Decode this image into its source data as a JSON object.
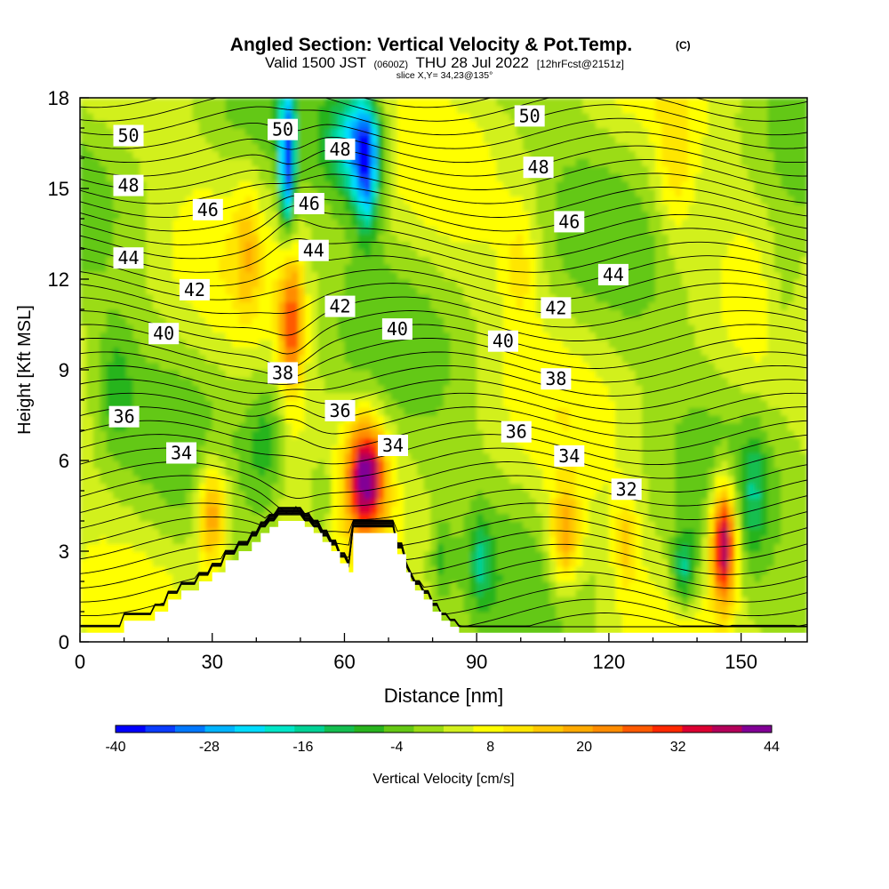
{
  "header": {
    "title": "Angled Section: Vertical Velocity & Pot.Temp.",
    "title_units": "(C)",
    "sub_valid": "Valid 1500 JST",
    "sub_utc": "(0600Z)",
    "sub_date": "THU 28 Jul 2022",
    "sub_fcst": "[12hrFcst@2151z]",
    "slice": "slice X,Y= 34,23@135°"
  },
  "chart_data": {
    "type": "heatmap",
    "xlabel": "Distance [nm]",
    "ylabel": "Height [Kft MSL]",
    "xlim": [
      0,
      165
    ],
    "ylim": [
      0,
      18
    ],
    "x_ticks": [
      "0",
      "30",
      "60",
      "90",
      "120",
      "150"
    ],
    "x_tick_values": [
      0,
      30,
      60,
      90,
      120,
      150
    ],
    "y_ticks": [
      "0",
      "3",
      "6",
      "9",
      "12",
      "15",
      "18"
    ],
    "y_tick_values": [
      0,
      3,
      6,
      9,
      12,
      15,
      18
    ],
    "colorbar": {
      "label": "Vertical Velocity [cm/s]",
      "tick_labels": [
        "-40",
        "-28",
        "-16",
        "-4",
        "8",
        "20",
        "32",
        "44"
      ],
      "tick_values": [
        -40,
        -28,
        -16,
        -4,
        8,
        20,
        32,
        44
      ],
      "levels": [
        -40,
        -36,
        -32,
        -28,
        -24,
        -20,
        -16,
        -12,
        -8,
        -4,
        0,
        4,
        8,
        12,
        16,
        20,
        24,
        28,
        32,
        36,
        40,
        44
      ],
      "colors": [
        "#0000ff",
        "#0a3cff",
        "#0078ff",
        "#00b4ff",
        "#00dcff",
        "#00e6c8",
        "#00d296",
        "#14be50",
        "#28b41e",
        "#64c814",
        "#9bdc14",
        "#d2f01e",
        "#ffff00",
        "#ffe600",
        "#ffc800",
        "#ffaa00",
        "#ff8c00",
        "#ff5a00",
        "#ff2800",
        "#dc0032",
        "#b4005a",
        "#820096"
      ]
    },
    "theta_contours": [
      {
        "label": "34",
        "level": 34
      },
      {
        "label": "36",
        "level": 36
      },
      {
        "label": "38",
        "level": 38
      },
      {
        "label": "40",
        "level": 40
      },
      {
        "label": "42",
        "level": 42
      },
      {
        "label": "44",
        "level": 44
      },
      {
        "label": "46",
        "level": 46
      },
      {
        "label": "48",
        "level": 48
      },
      {
        "label": "50",
        "level": 50
      },
      {
        "label": "32",
        "level": 32
      }
    ],
    "contour_labels": [
      {
        "text": "50",
        "x": 11,
        "y": 16.75
      },
      {
        "text": "48",
        "x": 11,
        "y": 15.1
      },
      {
        "text": "46",
        "x": 29,
        "y": 14.3
      },
      {
        "text": "44",
        "x": 11,
        "y": 12.7
      },
      {
        "text": "42",
        "x": 26,
        "y": 11.65
      },
      {
        "text": "40",
        "x": 19,
        "y": 10.2
      },
      {
        "text": "36",
        "x": 10,
        "y": 7.45
      },
      {
        "text": "34",
        "x": 23,
        "y": 6.25
      },
      {
        "text": "50",
        "x": 46,
        "y": 16.95
      },
      {
        "text": "46",
        "x": 52,
        "y": 14.5
      },
      {
        "text": "44",
        "x": 53,
        "y": 12.95
      },
      {
        "text": "48",
        "x": 59,
        "y": 16.3
      },
      {
        "text": "42",
        "x": 59,
        "y": 11.1
      },
      {
        "text": "38",
        "x": 46,
        "y": 8.9
      },
      {
        "text": "36",
        "x": 59,
        "y": 7.65
      },
      {
        "text": "34",
        "x": 71,
        "y": 6.5
      },
      {
        "text": "40",
        "x": 72,
        "y": 10.35
      },
      {
        "text": "50",
        "x": 102,
        "y": 17.4
      },
      {
        "text": "48",
        "x": 104,
        "y": 15.7
      },
      {
        "text": "46",
        "x": 111,
        "y": 13.9
      },
      {
        "text": "44",
        "x": 121,
        "y": 12.15
      },
      {
        "text": "42",
        "x": 108,
        "y": 11.05
      },
      {
        "text": "40",
        "x": 96,
        "y": 9.95
      },
      {
        "text": "38",
        "x": 108,
        "y": 8.7
      },
      {
        "text": "36",
        "x": 99,
        "y": 6.95
      },
      {
        "text": "34",
        "x": 111,
        "y": 6.15
      },
      {
        "text": "32",
        "x": 124,
        "y": 5.05
      }
    ],
    "velocity_features": [
      {
        "x": 30,
        "z": 4.3,
        "sx": 2.5,
        "sz": 1.3,
        "v": 22
      },
      {
        "x": 65,
        "z": 5.5,
        "sx": 3.0,
        "sz": 1.3,
        "v": 40
      },
      {
        "x": 48,
        "z": 10.5,
        "sx": 2.0,
        "sz": 1.6,
        "v": 26
      },
      {
        "x": 47,
        "z": 16.0,
        "sx": 1.2,
        "sz": 1.6,
        "v": -38
      },
      {
        "x": 62,
        "z": 16.5,
        "sx": 4.0,
        "sz": 1.2,
        "v": -25
      },
      {
        "x": 110,
        "z": 3.5,
        "sx": 2.5,
        "sz": 1.2,
        "v": 20
      },
      {
        "x": 124,
        "z": 3.3,
        "sx": 2.0,
        "sz": 1.1,
        "v": 12
      },
      {
        "x": 146,
        "z": 3.3,
        "sx": 2.0,
        "sz": 1.4,
        "v": 44
      },
      {
        "x": 137,
        "z": 2.4,
        "sx": 2.0,
        "sz": 0.9,
        "v": -18
      },
      {
        "x": 91,
        "z": 2.7,
        "sx": 1.6,
        "sz": 1.0,
        "v": -12
      },
      {
        "x": 82,
        "z": 2.7,
        "sx": 1.4,
        "sz": 0.9,
        "v": -8
      },
      {
        "x": 42,
        "z": 6.5,
        "sx": 3.0,
        "sz": 1.6,
        "v": -10
      },
      {
        "x": 55,
        "z": 4.8,
        "sx": 2.5,
        "sz": 1.2,
        "v": -10
      },
      {
        "x": 65,
        "z": 15.7,
        "sx": 2.0,
        "sz": 1.5,
        "v": -30
      },
      {
        "x": 38,
        "z": 13.0,
        "sx": 2.0,
        "sz": 1.6,
        "v": 10
      },
      {
        "x": 8,
        "z": 8.5,
        "sx": 3.0,
        "sz": 1.5,
        "v": -8
      },
      {
        "x": 160,
        "z": 11.5,
        "sx": 3.5,
        "sz": 1.8,
        "v": -8
      },
      {
        "x": 153,
        "z": 5.0,
        "sx": 2.0,
        "sz": 1.4,
        "v": -10
      },
      {
        "x": 100,
        "z": 12.5,
        "sx": 3.0,
        "sz": 1.5,
        "v": 9
      },
      {
        "x": 135,
        "z": 15.5,
        "sx": 3.0,
        "sz": 1.8,
        "v": 9
      }
    ],
    "terrain": {
      "x": [
        0,
        10,
        10,
        17,
        17,
        20,
        20,
        23,
        23,
        27,
        27,
        30,
        30,
        33,
        33,
        36,
        36,
        39,
        39,
        41,
        41,
        43,
        43,
        45,
        45,
        51,
        51,
        53,
        53,
        55,
        55,
        57,
        57,
        59,
        59,
        61,
        61,
        62,
        62,
        65,
        65,
        72,
        72,
        74,
        74,
        75,
        75,
        76,
        76,
        78,
        78,
        80,
        80,
        82,
        82,
        84,
        84,
        86,
        86,
        88,
        88,
        165
      ],
      "z": [
        0.3,
        0.3,
        0.7,
        0.7,
        1.0,
        1.0,
        1.4,
        1.4,
        1.7,
        1.7,
        2.0,
        2.0,
        2.3,
        2.3,
        2.7,
        2.7,
        3.0,
        3.0,
        3.3,
        3.3,
        3.6,
        3.6,
        3.8,
        3.8,
        4.0,
        4.0,
        3.8,
        3.8,
        3.6,
        3.6,
        3.3,
        3.3,
        3.0,
        3.0,
        2.6,
        2.6,
        2.3,
        2.3,
        3.6,
        3.6,
        3.6,
        3.6,
        2.9,
        2.9,
        2.3,
        2.3,
        2.0,
        2.0,
        1.7,
        1.7,
        1.4,
        1.4,
        1.0,
        1.0,
        0.7,
        0.7,
        0.5,
        0.5,
        0.3,
        0.3,
        0.3,
        0.3
      ]
    }
  }
}
